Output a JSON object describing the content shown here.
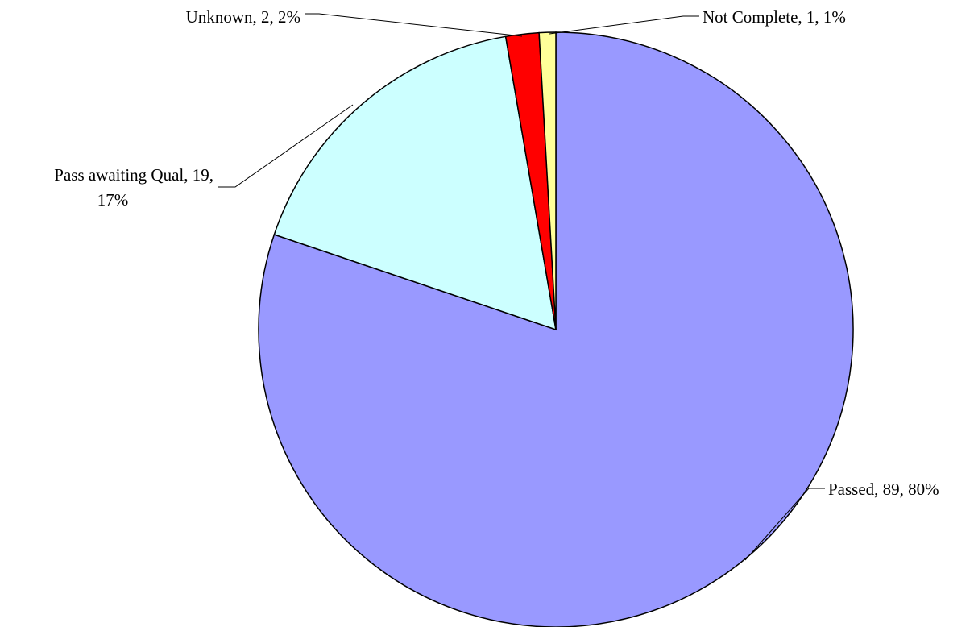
{
  "chart_data": {
    "type": "pie",
    "title": "",
    "start_angle_deg": 0,
    "direction": "clockwise",
    "slices": [
      {
        "name": "Passed",
        "value": 89,
        "percent": "80%",
        "color": "#9999FF",
        "label_lines": [
          "Passed, 89, 80%"
        ]
      },
      {
        "name": "Pass awaiting Qual",
        "value": 19,
        "percent": "17%",
        "color": "#CCFFFF",
        "label_lines": [
          "Pass awaiting Qual, 19,",
          "17%"
        ]
      },
      {
        "name": "Unknown",
        "value": 2,
        "percent": "2%",
        "color": "#FF0000",
        "label_lines": [
          "Unknown, 2, 2%"
        ]
      },
      {
        "name": "Not Complete",
        "value": 1,
        "percent": "1%",
        "color": "#FFFF99",
        "label_lines": [
          "Not Complete, 1, 1%"
        ]
      }
    ]
  }
}
